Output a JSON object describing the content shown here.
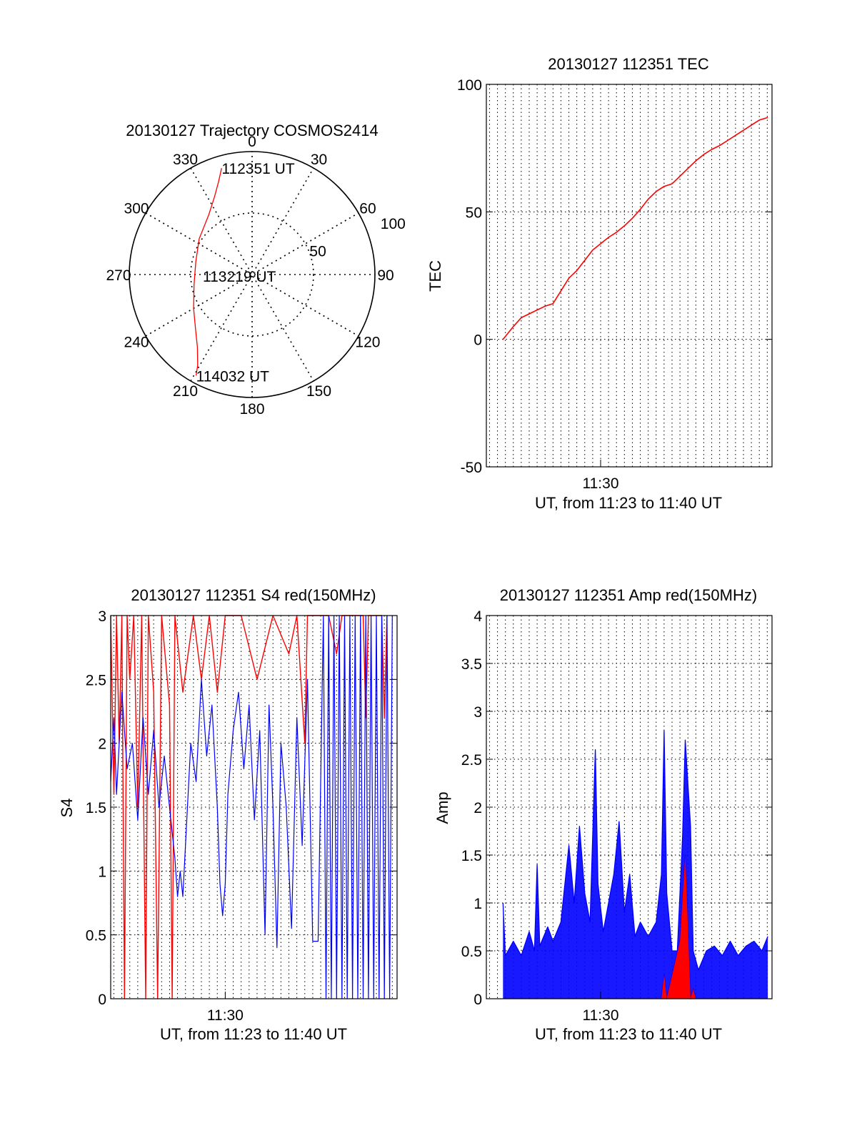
{
  "chart_data": [
    {
      "id": "polar",
      "type": "scatter",
      "title": "20130127 Trajectory COSMOS2414",
      "projection": "polar",
      "azimuth_labels": [
        "0",
        "30",
        "60",
        "90",
        "120",
        "150",
        "180",
        "210",
        "240",
        "270",
        "300",
        "330"
      ],
      "radial_labels": [
        "50",
        "100"
      ],
      "radial_range": [
        0,
        100
      ],
      "grid": true,
      "track": {
        "color": "#ff0000",
        "points": [
          {
            "az": 344,
            "zenith": 90
          },
          {
            "az": 340,
            "zenith": 80
          },
          {
            "az": 334,
            "zenith": 70
          },
          {
            "az": 324,
            "zenith": 60
          },
          {
            "az": 304,
            "zenith": 52
          },
          {
            "az": 283,
            "zenith": 47
          },
          {
            "az": 260,
            "zenith": 48
          },
          {
            "az": 240,
            "zenith": 55
          },
          {
            "az": 226,
            "zenith": 64
          },
          {
            "az": 217,
            "zenith": 74
          },
          {
            "az": 211,
            "zenith": 86
          },
          {
            "az": 209,
            "zenith": 94
          }
        ]
      },
      "annotations": [
        {
          "text": "112351 UT",
          "az": 344,
          "zenith": 90
        },
        {
          "text": "113219 UT",
          "az": 0,
          "zenith": 0
        },
        {
          "text": "114032 UT",
          "az": 209,
          "zenith": 94
        }
      ]
    },
    {
      "id": "tec",
      "type": "line",
      "title": "20130127 112351 TEC",
      "xlabel": "UT, from 11:23 to 11:40 UT",
      "ylabel": "TEC",
      "x_range": [
        "11:23:51",
        "11:40:32"
      ],
      "xlim": [
        "11:22:48",
        "11:40:48"
      ],
      "x_tick_labels": [
        {
          "t": "11:30",
          "label": "11:30"
        }
      ],
      "ylim": [
        -50,
        100
      ],
      "y_ticks": [
        -50,
        0,
        50,
        100
      ],
      "grid": true,
      "series": [
        {
          "color": "#ff0000",
          "points": [
            [
              "11:23:51",
              0
            ],
            [
              "11:24:30",
              5
            ],
            [
              "11:25:00",
              8.5
            ],
            [
              "11:25:30",
              10
            ],
            [
              "11:26:00",
              11.5
            ],
            [
              "11:26:30",
              13
            ],
            [
              "11:27:00",
              14
            ],
            [
              "11:27:30",
              19
            ],
            [
              "11:28:00",
              24
            ],
            [
              "11:28:30",
              27
            ],
            [
              "11:29:00",
              31
            ],
            [
              "11:29:30",
              35
            ],
            [
              "11:30:00",
              37.5
            ],
            [
              "11:30:30",
              40
            ],
            [
              "11:31:00",
              42
            ],
            [
              "11:31:30",
              44.5
            ],
            [
              "11:32:00",
              47.5
            ],
            [
              "11:32:30",
              51
            ],
            [
              "11:33:00",
              55
            ],
            [
              "11:33:30",
              58
            ],
            [
              "11:34:00",
              60
            ],
            [
              "11:34:30",
              61
            ],
            [
              "11:35:00",
              64
            ],
            [
              "11:35:30",
              67
            ],
            [
              "11:36:00",
              70
            ],
            [
              "11:36:30",
              72.5
            ],
            [
              "11:37:00",
              74.5
            ],
            [
              "11:37:30",
              76
            ],
            [
              "11:38:00",
              78
            ],
            [
              "11:38:30",
              80
            ],
            [
              "11:39:00",
              82
            ],
            [
              "11:39:30",
              84
            ],
            [
              "11:40:00",
              86
            ],
            [
              "11:40:32",
              87
            ]
          ]
        }
      ]
    },
    {
      "id": "s4",
      "type": "line",
      "title": "20130127 112351 S4 red(150MHz)",
      "xlabel": "UT, from 11:23 to 11:40 UT",
      "ylabel": "S4",
      "xlim": [
        "11:22:48",
        "11:40:48"
      ],
      "x_tick_labels": [
        {
          "t": "11:30",
          "label": "11:30"
        }
      ],
      "ylim": [
        0,
        3
      ],
      "y_ticks": [
        0,
        0.5,
        1,
        1.5,
        2,
        2.5,
        3
      ],
      "grid": true,
      "series": [
        {
          "color": "#ff0000",
          "points": [
            [
              "11:22:48",
              3
            ],
            [
              "11:23:00",
              1.6
            ],
            [
              "11:23:10",
              3
            ],
            [
              "11:23:20",
              2.0
            ],
            [
              "11:23:30",
              3
            ],
            [
              "11:23:40",
              0
            ],
            [
              "11:23:50",
              3
            ],
            [
              "11:24:00",
              2.5
            ],
            [
              "11:24:15",
              3
            ],
            [
              "11:24:30",
              1.5
            ],
            [
              "11:24:45",
              3
            ],
            [
              "11:25:00",
              0
            ],
            [
              "11:25:10",
              3
            ],
            [
              "11:25:30",
              2.4
            ],
            [
              "11:25:45",
              0
            ],
            [
              "11:26:00",
              3
            ],
            [
              "11:26:30",
              2.3
            ],
            [
              "11:26:40",
              0
            ],
            [
              "11:26:50",
              3
            ],
            [
              "11:27:20",
              2.4
            ],
            [
              "11:28:00",
              3
            ],
            [
              "11:28:30",
              2.5
            ],
            [
              "11:29:00",
              3
            ],
            [
              "11:29:30",
              2.4
            ],
            [
              "11:30:00",
              3
            ],
            [
              "11:31:00",
              3
            ],
            [
              "11:32:00",
              2.5
            ],
            [
              "11:33:00",
              3
            ],
            [
              "11:34:00",
              2.7
            ],
            [
              "11:34:30",
              3
            ],
            [
              "11:35:00",
              2.0
            ],
            [
              "11:35:10",
              3
            ],
            [
              "11:36:30",
              3
            ],
            [
              "11:37:00",
              2.7
            ],
            [
              "11:37:20",
              3
            ],
            [
              "11:38:40",
              3
            ],
            [
              "11:38:50",
              2.2
            ],
            [
              "11:39:00",
              3
            ],
            [
              "11:39:50",
              3
            ],
            [
              "11:40:00",
              2.2
            ],
            [
              "11:40:10",
              3
            ]
          ]
        },
        {
          "color": "#0000ff",
          "points": [
            [
              "11:22:48",
              1.7
            ],
            [
              "11:23:00",
              2.2
            ],
            [
              "11:23:10",
              1.6
            ],
            [
              "11:23:30",
              2.4
            ],
            [
              "11:23:50",
              1.8
            ],
            [
              "11:24:10",
              2.0
            ],
            [
              "11:24:30",
              1.4
            ],
            [
              "11:24:50",
              2.2
            ],
            [
              "11:25:10",
              1.6
            ],
            [
              "11:25:30",
              2.1
            ],
            [
              "11:25:50",
              1.5
            ],
            [
              "11:26:10",
              1.9
            ],
            [
              "11:26:30",
              1.5
            ],
            [
              "11:26:50",
              1.1
            ],
            [
              "11:27:00",
              0.8
            ],
            [
              "11:27:10",
              1.0
            ],
            [
              "11:27:20",
              0.8
            ],
            [
              "11:27:30",
              1.2
            ],
            [
              "11:27:50",
              2.0
            ],
            [
              "11:28:10",
              1.7
            ],
            [
              "11:28:30",
              2.5
            ],
            [
              "11:28:50",
              1.9
            ],
            [
              "11:29:10",
              2.3
            ],
            [
              "11:29:30",
              1.5
            ],
            [
              "11:29:40",
              0.9
            ],
            [
              "11:29:50",
              0.65
            ],
            [
              "11:30:00",
              0.9
            ],
            [
              "11:30:10",
              1.6
            ],
            [
              "11:30:30",
              2.1
            ],
            [
              "11:30:50",
              2.4
            ],
            [
              "11:31:10",
              1.8
            ],
            [
              "11:31:30",
              2.3
            ],
            [
              "11:31:50",
              1.4
            ],
            [
              "11:32:10",
              2.1
            ],
            [
              "11:32:30",
              0.5
            ],
            [
              "11:32:45",
              2.3
            ],
            [
              "11:33:00",
              1.5
            ],
            [
              "11:33:15",
              0.4
            ],
            [
              "11:33:30",
              2.0
            ],
            [
              "11:33:50",
              1.5
            ],
            [
              "11:34:10",
              0.55
            ],
            [
              "11:34:30",
              2.2
            ],
            [
              "11:34:50",
              1.2
            ],
            [
              "11:35:10",
              2.5
            ],
            [
              "11:35:30",
              0.45
            ],
            [
              "11:35:50",
              0.45
            ],
            [
              "11:36:10",
              3
            ],
            [
              "11:36:20",
              0
            ],
            [
              "11:36:30",
              3
            ],
            [
              "11:36:40",
              0
            ],
            [
              "11:36:50",
              3
            ],
            [
              "11:37:00",
              0
            ],
            [
              "11:37:10",
              3
            ],
            [
              "11:37:20",
              0
            ],
            [
              "11:37:30",
              3
            ],
            [
              "11:37:40",
              0
            ],
            [
              "11:37:50",
              3
            ],
            [
              "11:38:00",
              0
            ],
            [
              "11:38:10",
              3
            ],
            [
              "11:38:20",
              0
            ],
            [
              "11:38:30",
              3
            ],
            [
              "11:38:40",
              0
            ],
            [
              "11:38:50",
              3
            ],
            [
              "11:39:00",
              0
            ],
            [
              "11:39:10",
              3
            ],
            [
              "11:39:20",
              0
            ],
            [
              "11:39:30",
              3
            ],
            [
              "11:39:40",
              0
            ],
            [
              "11:39:50",
              3
            ],
            [
              "11:40:00",
              0
            ],
            [
              "11:40:10",
              3
            ],
            [
              "11:40:20",
              0
            ],
            [
              "11:40:30",
              3
            ]
          ]
        }
      ]
    },
    {
      "id": "amp",
      "type": "line",
      "title": "20130127 112351 Amp red(150MHz)",
      "xlabel": "UT, from 11:23 to 11:40 UT",
      "ylabel": "Amp",
      "xlim": [
        "11:22:48",
        "11:40:48"
      ],
      "x_tick_labels": [
        {
          "t": "11:30",
          "label": "11:30"
        }
      ],
      "ylim": [
        0,
        4
      ],
      "y_ticks": [
        0,
        0.5,
        1,
        1.5,
        2,
        2.5,
        3,
        3.5,
        4
      ],
      "grid": true,
      "series": [
        {
          "color": "#0000ff",
          "points": [
            [
              "11:23:51",
              1.0
            ],
            [
              "11:24:00",
              0.45
            ],
            [
              "11:24:30",
              0.6
            ],
            [
              "11:25:00",
              0.45
            ],
            [
              "11:25:30",
              0.7
            ],
            [
              "11:25:50",
              0.5
            ],
            [
              "11:26:00",
              1.4
            ],
            [
              "11:26:10",
              0.55
            ],
            [
              "11:26:40",
              0.75
            ],
            [
              "11:27:00",
              0.6
            ],
            [
              "11:27:30",
              0.8
            ],
            [
              "11:28:00",
              1.6
            ],
            [
              "11:28:20",
              1.0
            ],
            [
              "11:28:40",
              1.8
            ],
            [
              "11:29:00",
              1.1
            ],
            [
              "11:29:20",
              0.8
            ],
            [
              "11:29:40",
              2.6
            ],
            [
              "11:29:50",
              1.2
            ],
            [
              "11:30:10",
              0.7
            ],
            [
              "11:30:30",
              1.0
            ],
            [
              "11:30:50",
              1.3
            ],
            [
              "11:31:10",
              1.85
            ],
            [
              "11:31:30",
              0.9
            ],
            [
              "11:31:50",
              1.3
            ],
            [
              "11:32:10",
              0.65
            ],
            [
              "11:32:30",
              0.8
            ],
            [
              "11:33:00",
              0.65
            ],
            [
              "11:33:30",
              0.8
            ],
            [
              "11:33:50",
              1.3
            ],
            [
              "11:34:00",
              2.8
            ],
            [
              "11:34:10",
              1.1
            ],
            [
              "11:34:30",
              0.5
            ],
            [
              "11:34:50",
              0.5
            ],
            [
              "11:35:10",
              1.7
            ],
            [
              "11:35:20",
              2.7
            ],
            [
              "11:35:40",
              1.8
            ],
            [
              "11:35:50",
              0.5
            ],
            [
              "11:36:10",
              0.3
            ],
            [
              "11:36:40",
              0.5
            ],
            [
              "11:37:10",
              0.55
            ],
            [
              "11:37:40",
              0.45
            ],
            [
              "11:38:10",
              0.6
            ],
            [
              "11:38:40",
              0.45
            ],
            [
              "11:39:10",
              0.55
            ],
            [
              "11:39:40",
              0.6
            ],
            [
              "11:40:10",
              0.5
            ],
            [
              "11:40:32",
              0.65
            ]
          ]
        },
        {
          "color": "#ff0000",
          "points": [
            [
              "11:33:50",
              0
            ],
            [
              "11:34:00",
              0.25
            ],
            [
              "11:34:10",
              0
            ],
            [
              "11:35:00",
              0.6
            ],
            [
              "11:35:20",
              1.5
            ],
            [
              "11:35:40",
              0
            ],
            [
              "11:35:50",
              0.1
            ],
            [
              "11:36:00",
              0
            ]
          ]
        }
      ]
    }
  ]
}
